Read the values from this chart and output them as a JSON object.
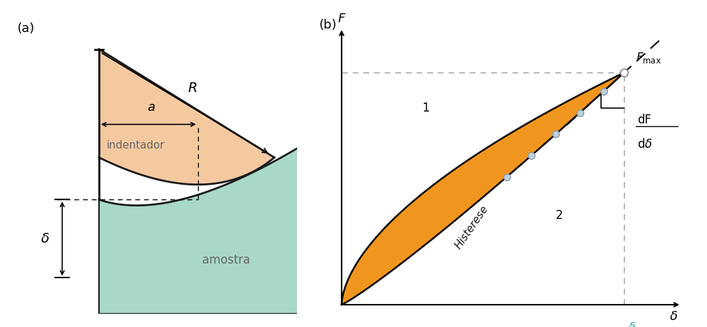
{
  "fig_width": 10.14,
  "fig_height": 4.69,
  "bg_color": "#ffffff",
  "indenter_fill": "#f5c9a0",
  "indenter_stroke": "#1a1a1a",
  "sample_fill": "#a8d8c8",
  "sample_stroke": "#1a1a1a",
  "orange_fill": "#f0961e",
  "label_a": "(a)",
  "label_b": "(b)",
  "text_indentador": "indentador",
  "text_amostra": "amostra",
  "text_R": "R",
  "text_a": "a",
  "text_delta": "δ",
  "text_F": "F",
  "text_Histerese": "Histerese",
  "text_1": "1",
  "text_2": "2",
  "text_delta_ax": "δ",
  "dot_color": "#c0d0dc",
  "dashed_color": "#999999"
}
